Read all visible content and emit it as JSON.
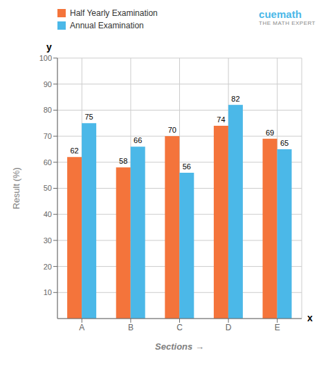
{
  "chart_data": {
    "type": "bar",
    "categories": [
      "A",
      "B",
      "C",
      "D",
      "E"
    ],
    "series": [
      {
        "name": "Half Yearly Examination",
        "color": "#F4743B",
        "values": [
          62,
          58,
          70,
          74,
          69
        ]
      },
      {
        "name": "Annual Examination",
        "color": "#4BB8E8",
        "values": [
          75,
          66,
          56,
          82,
          65
        ]
      }
    ],
    "x_label": "Sections  →",
    "y_label": "Result (%)",
    "ylim": [
      0,
      100
    ],
    "yticks": [
      10,
      20,
      30,
      40,
      50,
      60,
      70,
      80,
      90,
      100
    ],
    "grid": true,
    "legend": "upper left",
    "data_labels": true,
    "annotations": [
      {
        "text": "y"
      },
      {
        "text": "x"
      },
      {
        "text": "cuemath",
        "color": "#4BB8E8"
      },
      {
        "text": "THE MATH EXPERT",
        "color": "#888888"
      }
    ]
  }
}
